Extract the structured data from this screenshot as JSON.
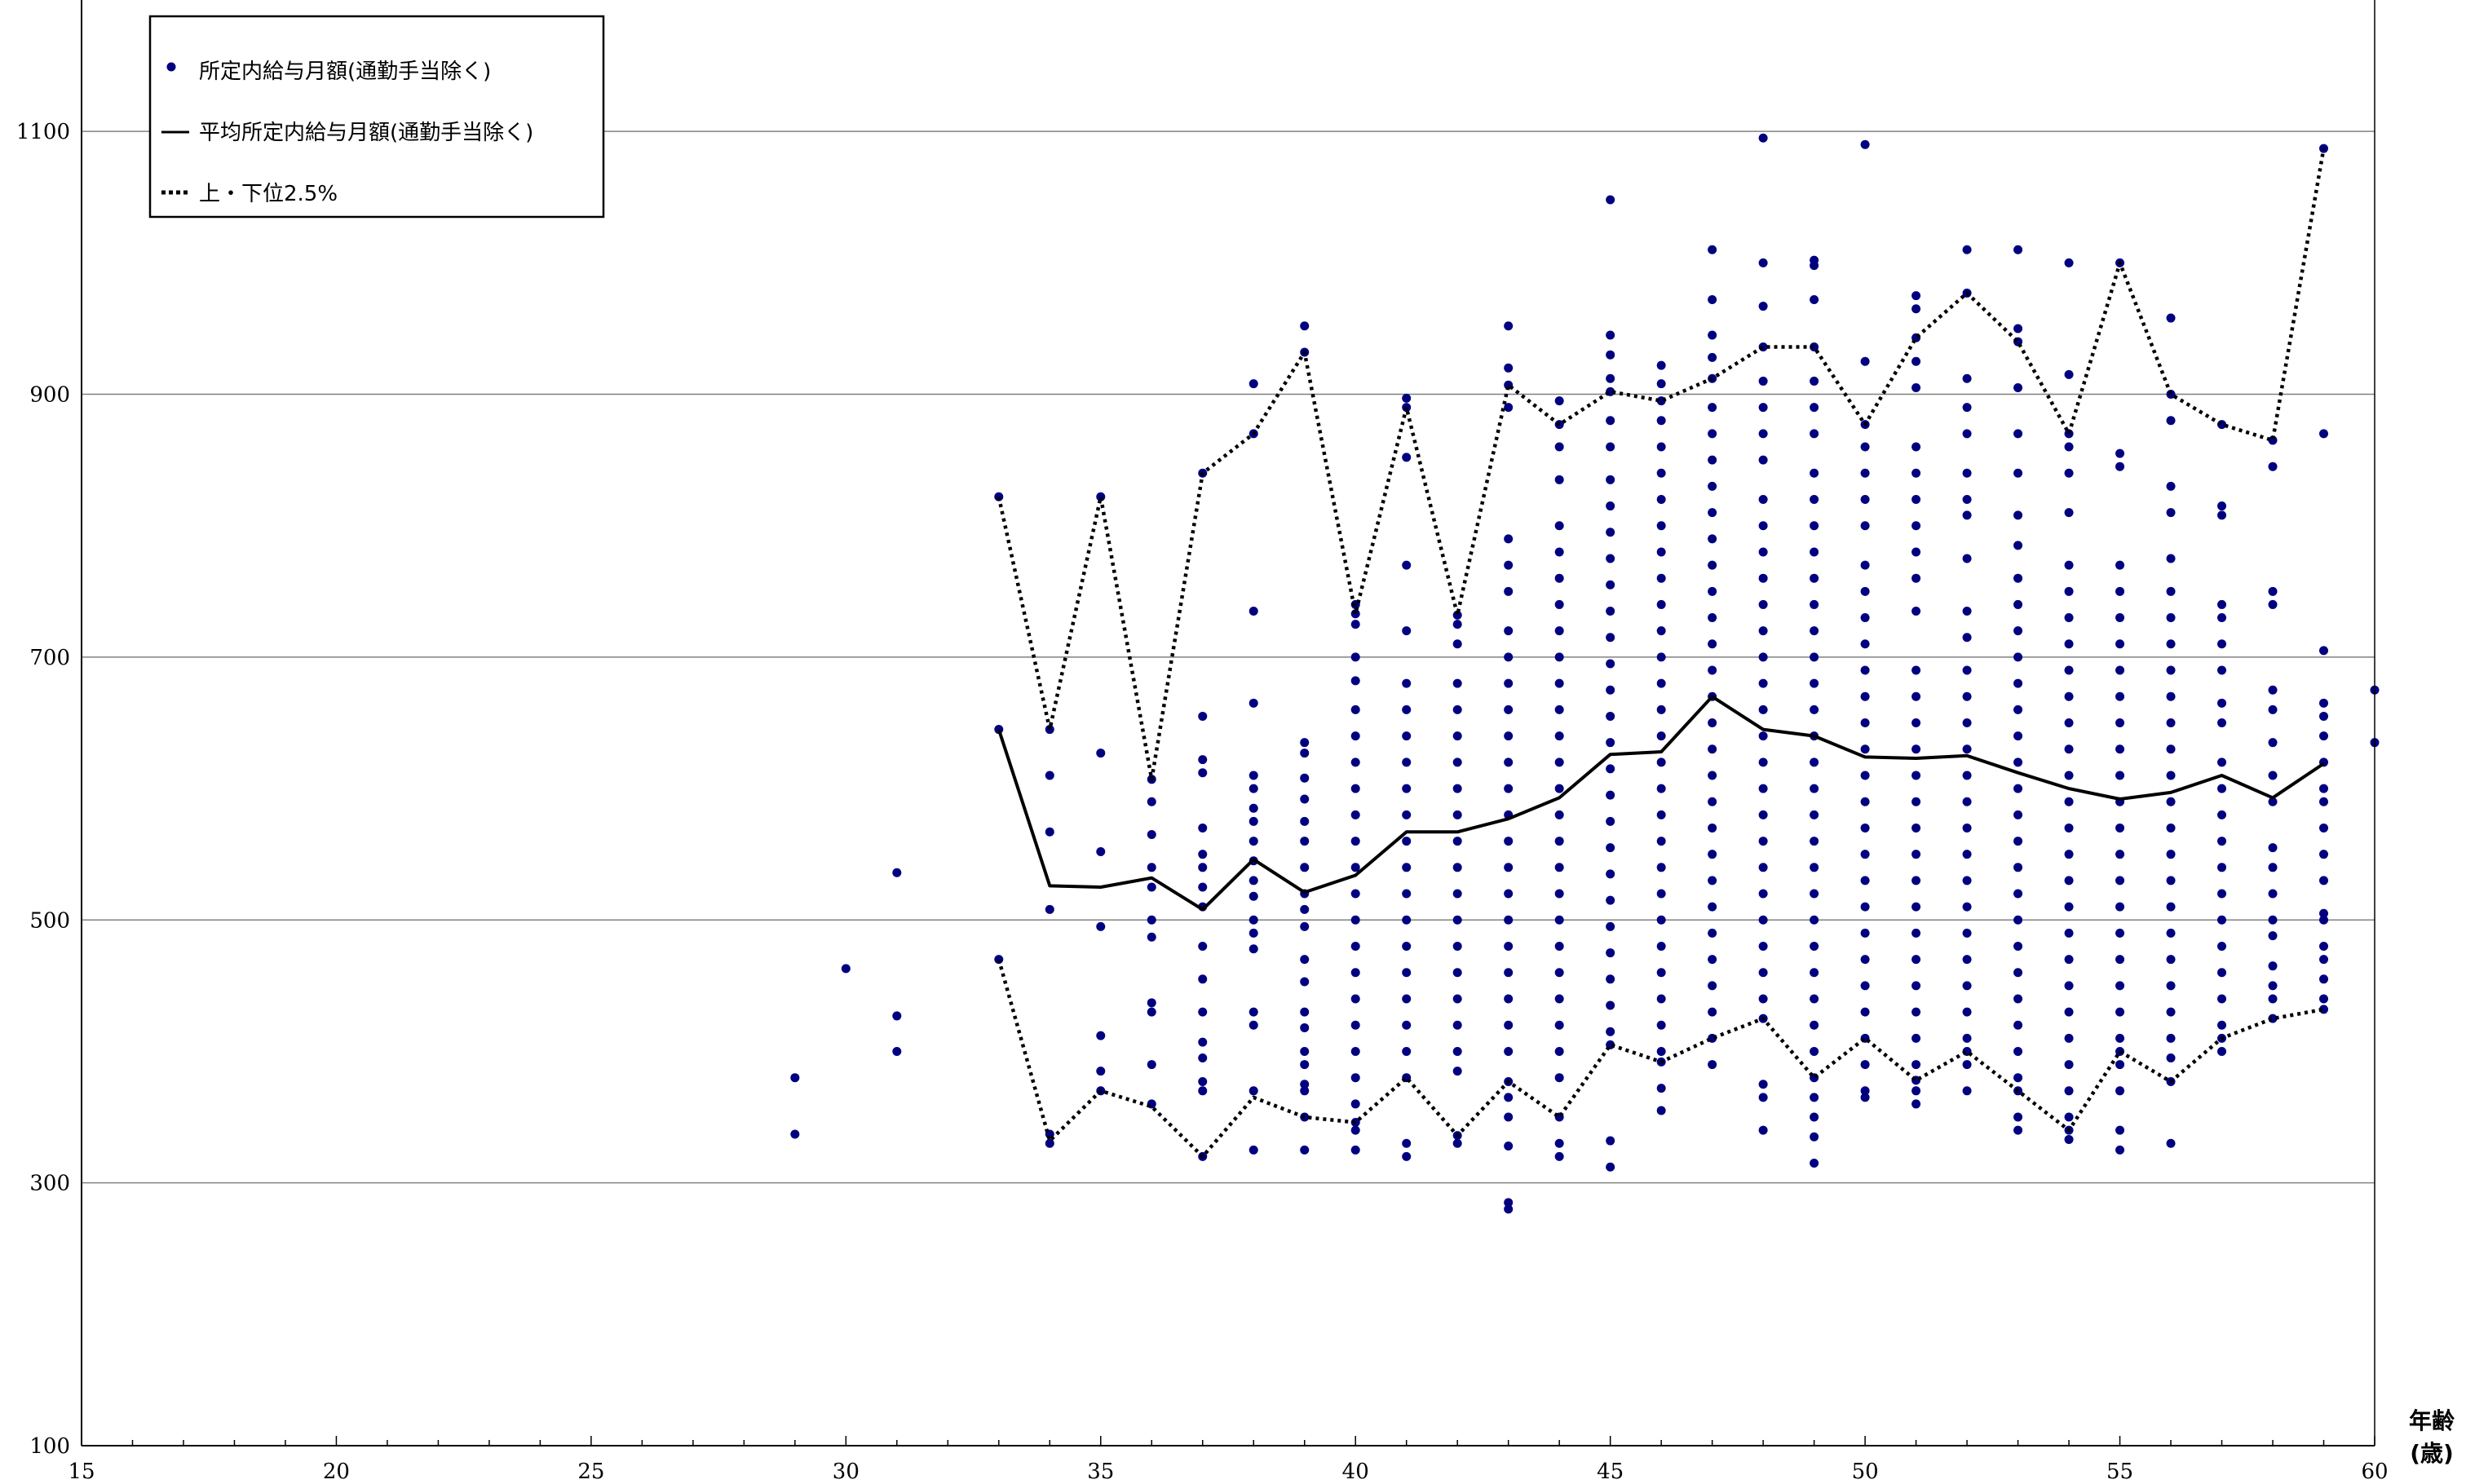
{
  "chart_data": {
    "type": "scatter",
    "title": "",
    "xlabel": "年齢",
    "xlabel_unit": "(歳)",
    "ylabel": "",
    "xlim": [
      15,
      60
    ],
    "ylim": [
      100,
      1200
    ],
    "x_ticks": [
      "15",
      "20",
      "25",
      "30",
      "35",
      "40",
      "45",
      "50",
      "55",
      "60"
    ],
    "y_ticks": [
      "100",
      "300",
      "500",
      "700",
      "900",
      "1100"
    ],
    "grid": "horizontal",
    "legend_position": "top-left",
    "colors": {
      "points": "#000080",
      "mean": "#000000",
      "bands": "#000000"
    },
    "legend": [
      {
        "label": "所定内給与月額(通勤手当除く)",
        "style": "dot"
      },
      {
        "label": "平均所定内給与月額(通勤手当除く)",
        "style": "solid"
      },
      {
        "label": "上・下位2.5%",
        "style": "dotted"
      }
    ],
    "series": [
      {
        "name": "平均所定内給与月額(通勤手当除く)",
        "style": "solid",
        "x": [
          33,
          34,
          35,
          36,
          37,
          38,
          39,
          40,
          41,
          42,
          43,
          44,
          45,
          46,
          47,
          48,
          49,
          50,
          51,
          52,
          53,
          54,
          55,
          56,
          57,
          58,
          59
        ],
        "y": [
          645,
          526,
          525,
          532,
          508,
          546,
          521,
          534,
          567,
          567,
          577,
          593,
          626,
          628,
          670,
          645,
          640,
          624,
          623,
          625,
          612,
          600,
          592,
          597,
          610,
          593,
          619
        ]
      },
      {
        "name": "上位2.5%",
        "style": "dotted",
        "x": [
          33,
          34,
          35,
          36,
          37,
          38,
          39,
          40,
          41,
          42,
          43,
          44,
          45,
          46,
          47,
          48,
          49,
          50,
          51,
          52,
          53,
          54,
          55,
          56,
          57,
          58,
          59
        ],
        "y": [
          822,
          645,
          822,
          607,
          840,
          870,
          932,
          733,
          890,
          732,
          907,
          877,
          902,
          895,
          912,
          936,
          936,
          877,
          943,
          977,
          940,
          870,
          1000,
          900,
          877,
          865,
          1087
        ]
      },
      {
        "name": "下位2.5%",
        "style": "dotted",
        "x": [
          33,
          34,
          35,
          36,
          37,
          38,
          39,
          40,
          41,
          42,
          43,
          44,
          45,
          46,
          47,
          48,
          49,
          50,
          51,
          52,
          53,
          54,
          55,
          56,
          57,
          58,
          59
        ],
        "y": [
          470,
          332,
          370,
          358,
          320,
          365,
          350,
          346,
          380,
          336,
          377,
          350,
          405,
          392,
          410,
          425,
          380,
          410,
          378,
          400,
          370,
          340,
          400,
          377,
          410,
          425,
          432
        ]
      }
    ],
    "scatter_columns": [
      {
        "x": 29,
        "y": [
          380,
          337
        ]
      },
      {
        "x": 30,
        "y": [
          463
        ]
      },
      {
        "x": 31,
        "y": [
          536,
          427,
          400
        ]
      },
      {
        "x": 33,
        "y": [
          822,
          645,
          470
        ]
      },
      {
        "x": 34,
        "y": [
          645,
          610,
          567,
          508,
          337,
          330
        ]
      },
      {
        "x": 35,
        "y": [
          822,
          627,
          552,
          495,
          412,
          385,
          370
        ]
      },
      {
        "x": 36,
        "y": [
          607,
          590,
          565,
          540,
          525,
          500,
          487,
          437,
          430,
          390,
          360
        ]
      },
      {
        "x": 37,
        "y": [
          840,
          655,
          622,
          612,
          570,
          550,
          540,
          525,
          510,
          480,
          455,
          430,
          407,
          395,
          377,
          370,
          320
        ]
      },
      {
        "x": 38,
        "y": [
          908,
          870,
          735,
          665,
          610,
          600,
          585,
          575,
          560,
          545,
          530,
          518,
          500,
          490,
          478,
          430,
          420,
          370,
          325
        ]
      },
      {
        "x": 39,
        "y": [
          952,
          932,
          635,
          627,
          608,
          592,
          575,
          560,
          540,
          520,
          508,
          495,
          470,
          453,
          430,
          418,
          400,
          390,
          375,
          370,
          350,
          325
        ]
      },
      {
        "x": 40,
        "y": [
          740,
          733,
          725,
          700,
          682,
          660,
          640,
          620,
          600,
          580,
          560,
          540,
          520,
          500,
          480,
          460,
          440,
          420,
          400,
          380,
          360,
          346,
          340,
          325
        ]
      },
      {
        "x": 41,
        "y": [
          897,
          890,
          852,
          770,
          720,
          680,
          660,
          640,
          620,
          600,
          580,
          560,
          540,
          520,
          500,
          480,
          460,
          440,
          420,
          400,
          380,
          330,
          320
        ]
      },
      {
        "x": 42,
        "y": [
          732,
          725,
          710,
          680,
          660,
          640,
          620,
          600,
          580,
          560,
          540,
          520,
          500,
          480,
          460,
          440,
          420,
          400,
          385,
          336,
          330
        ]
      },
      {
        "x": 43,
        "y": [
          952,
          920,
          907,
          890,
          790,
          770,
          750,
          720,
          700,
          680,
          660,
          640,
          620,
          600,
          580,
          560,
          540,
          520,
          500,
          480,
          460,
          440,
          420,
          400,
          377,
          365,
          350,
          328,
          285,
          280
        ]
      },
      {
        "x": 44,
        "y": [
          895,
          877,
          860,
          835,
          800,
          780,
          760,
          740,
          720,
          700,
          680,
          660,
          640,
          620,
          600,
          580,
          560,
          540,
          520,
          500,
          480,
          460,
          440,
          420,
          400,
          380,
          350,
          330,
          320
        ]
      },
      {
        "x": 45,
        "y": [
          1048,
          945,
          930,
          912,
          902,
          880,
          860,
          835,
          815,
          795,
          775,
          755,
          735,
          715,
          695,
          675,
          655,
          635,
          615,
          595,
          575,
          555,
          535,
          515,
          495,
          475,
          455,
          435,
          415,
          405,
          332,
          312
        ]
      },
      {
        "x": 46,
        "y": [
          922,
          908,
          895,
          880,
          860,
          840,
          820,
          800,
          780,
          760,
          740,
          720,
          700,
          680,
          660,
          640,
          620,
          600,
          580,
          560,
          540,
          520,
          500,
          480,
          460,
          440,
          420,
          400,
          392,
          372,
          355
        ]
      },
      {
        "x": 47,
        "y": [
          1010,
          972,
          945,
          928,
          912,
          890,
          870,
          850,
          830,
          810,
          790,
          770,
          750,
          730,
          710,
          690,
          670,
          650,
          630,
          610,
          590,
          570,
          550,
          530,
          510,
          490,
          470,
          450,
          430,
          410,
          390
        ]
      },
      {
        "x": 48,
        "y": [
          1095,
          1000,
          967,
          936,
          910,
          890,
          870,
          850,
          820,
          800,
          780,
          760,
          740,
          720,
          700,
          680,
          660,
          640,
          620,
          600,
          580,
          560,
          540,
          520,
          500,
          480,
          460,
          440,
          425,
          375,
          365,
          340
        ]
      },
      {
        "x": 49,
        "y": [
          1002,
          998,
          972,
          936,
          910,
          890,
          870,
          840,
          820,
          800,
          780,
          760,
          740,
          720,
          700,
          680,
          660,
          640,
          620,
          600,
          580,
          560,
          540,
          520,
          500,
          480,
          460,
          440,
          420,
          400,
          380,
          365,
          350,
          335,
          315
        ]
      },
      {
        "x": 50,
        "y": [
          1090,
          925,
          877,
          860,
          840,
          820,
          800,
          770,
          750,
          730,
          710,
          690,
          670,
          650,
          630,
          610,
          590,
          570,
          550,
          530,
          510,
          490,
          470,
          450,
          430,
          410,
          390,
          370,
          365
        ]
      },
      {
        "x": 51,
        "y": [
          975,
          965,
          943,
          925,
          905,
          860,
          840,
          820,
          800,
          780,
          760,
          735,
          690,
          670,
          650,
          630,
          610,
          590,
          570,
          550,
          530,
          510,
          490,
          470,
          450,
          430,
          410,
          390,
          378,
          370,
          360
        ]
      },
      {
        "x": 52,
        "y": [
          1010,
          977,
          912,
          890,
          870,
          840,
          820,
          808,
          775,
          735,
          715,
          690,
          670,
          650,
          630,
          610,
          590,
          570,
          550,
          530,
          510,
          490,
          470,
          450,
          430,
          410,
          400,
          390,
          370
        ]
      },
      {
        "x": 53,
        "y": [
          1010,
          950,
          940,
          905,
          870,
          840,
          808,
          785,
          760,
          740,
          720,
          700,
          680,
          660,
          640,
          620,
          600,
          580,
          560,
          540,
          520,
          500,
          480,
          460,
          440,
          420,
          400,
          380,
          370,
          350,
          340
        ]
      },
      {
        "x": 54,
        "y": [
          1000,
          915,
          870,
          860,
          840,
          810,
          770,
          750,
          730,
          710,
          690,
          670,
          650,
          630,
          610,
          590,
          570,
          550,
          530,
          510,
          490,
          470,
          450,
          430,
          410,
          390,
          370,
          350,
          340,
          333
        ]
      },
      {
        "x": 55,
        "y": [
          1000,
          855,
          845,
          770,
          750,
          730,
          710,
          690,
          670,
          650,
          630,
          610,
          590,
          570,
          550,
          530,
          510,
          490,
          470,
          450,
          430,
          410,
          400,
          390,
          370,
          340,
          325
        ]
      },
      {
        "x": 56,
        "y": [
          958,
          900,
          880,
          830,
          810,
          775,
          750,
          730,
          710,
          690,
          670,
          650,
          630,
          610,
          590,
          570,
          550,
          530,
          510,
          490,
          470,
          450,
          430,
          410,
          395,
          377,
          330
        ]
      },
      {
        "x": 57,
        "y": [
          877,
          815,
          808,
          740,
          730,
          710,
          690,
          665,
          650,
          620,
          600,
          580,
          560,
          540,
          520,
          500,
          480,
          460,
          440,
          420,
          410,
          400
        ]
      },
      {
        "x": 58,
        "y": [
          865,
          845,
          750,
          740,
          675,
          660,
          635,
          610,
          590,
          555,
          540,
          520,
          500,
          488,
          465,
          450,
          440,
          425
        ]
      },
      {
        "x": 59,
        "y": [
          1087,
          870,
          705,
          665,
          655,
          640,
          620,
          600,
          590,
          570,
          550,
          530,
          505,
          500,
          480,
          470,
          455,
          440,
          432
        ]
      },
      {
        "x": 60,
        "y": [
          675,
          635
        ]
      }
    ]
  }
}
